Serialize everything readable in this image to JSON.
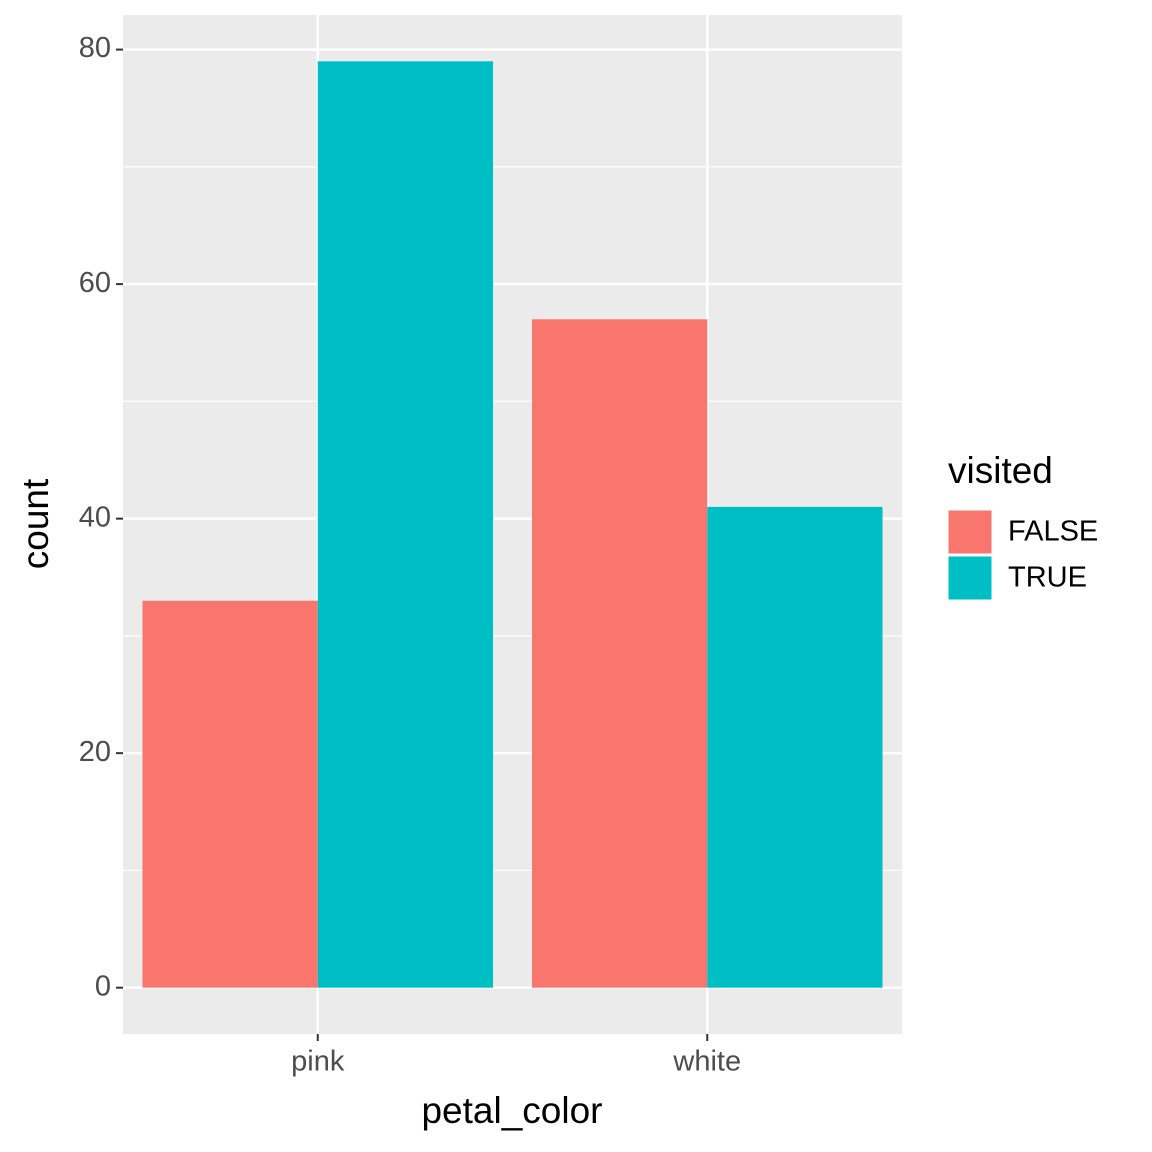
{
  "chart_data": {
    "type": "bar",
    "x_label": "petal_color",
    "y_label": "count",
    "categories": [
      "pink",
      "white"
    ],
    "series": [
      {
        "name": "FALSE",
        "color": "#f8766d",
        "values": [
          33,
          57
        ]
      },
      {
        "name": "TRUE",
        "color": "#00bfc4",
        "values": [
          79,
          41
        ]
      }
    ],
    "legend_title": "visited",
    "legend_position": "right",
    "ylim": [
      -3.95,
      82.95
    ],
    "yticks": [
      0,
      20,
      40,
      60,
      80
    ],
    "grid": true
  }
}
